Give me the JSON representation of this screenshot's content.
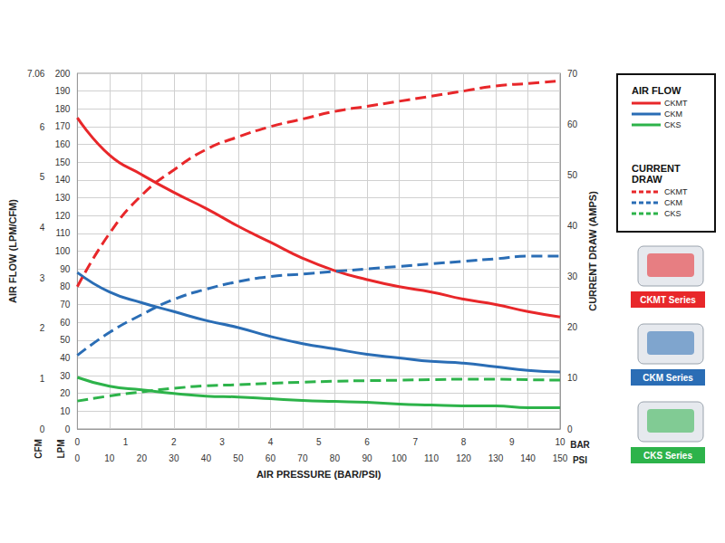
{
  "chart_data": {
    "type": "line",
    "x_label": "AIR PRESSURE (BAR/PSI)",
    "y_label": "AIR FLOW (LPM/CFM)",
    "y2_label": "CURRENT DRAW (AMPS)",
    "x": [
      0,
      10,
      20,
      30,
      40,
      50,
      60,
      70,
      80,
      90,
      100,
      110,
      120,
      130,
      140,
      150
    ],
    "xlim": [
      0,
      150
    ],
    "xticks": [
      0,
      10,
      20,
      30,
      40,
      50,
      60,
      70,
      80,
      90,
      100,
      110,
      120,
      130,
      140,
      150
    ],
    "x_unit": "PSI",
    "x2lim": [
      0,
      10
    ],
    "x2ticks": [
      0,
      1,
      2,
      3,
      4,
      5,
      6,
      7,
      8,
      9,
      10
    ],
    "x2_unit": "BAR",
    "ylim": [
      0,
      200
    ],
    "yticks": [
      0,
      10,
      20,
      30,
      40,
      50,
      60,
      70,
      80,
      90,
      100,
      110,
      120,
      130,
      140,
      150,
      160,
      170,
      180,
      190,
      200
    ],
    "y_unit": "LPM",
    "y3lim": [
      0,
      7.06
    ],
    "y3ticks": [
      0,
      1,
      2,
      3,
      4,
      5,
      6,
      7
    ],
    "y3_unit": "CFM",
    "y2lim": [
      0,
      70
    ],
    "y2ticks": [
      0,
      10,
      20,
      30,
      40,
      50,
      60,
      70
    ],
    "grid": true,
    "legend": "right",
    "series": [
      {
        "name": "CKMT",
        "group": "AIR FLOW",
        "color": "#e8272a",
        "line_style": "solid",
        "values": [
          175,
          154,
          143,
          133,
          124,
          114,
          105,
          96,
          89,
          84,
          80,
          77,
          73,
          70,
          66,
          63
        ]
      },
      {
        "name": "CKM",
        "group": "AIR FLOW",
        "color": "#2a6db5",
        "line_style": "solid",
        "values": [
          88,
          77,
          71,
          66,
          61,
          57,
          52,
          48,
          45,
          42,
          40,
          38,
          37,
          35,
          33,
          32
        ]
      },
      {
        "name": "CKS",
        "group": "AIR FLOW",
        "color": "#2db34a",
        "line_style": "solid",
        "values": [
          29,
          24,
          22,
          20,
          18.5,
          18,
          17,
          16,
          15.5,
          15,
          14,
          13.5,
          13,
          13,
          12,
          12
        ]
      },
      {
        "name": "CKMT",
        "group": "CURRENT DRAW",
        "color": "#e8272a",
        "line_style": "dashed",
        "axis": "y2",
        "values": [
          28,
          38.5,
          46,
          51,
          55,
          57.5,
          59.5,
          61,
          62.5,
          63.5,
          64.5,
          65.5,
          66.5,
          67.5,
          68,
          68.5
        ]
      },
      {
        "name": "CKM",
        "group": "CURRENT DRAW",
        "color": "#2a6db5",
        "line_style": "dashed",
        "axis": "y2",
        "values": [
          14.5,
          19,
          22.5,
          25.5,
          27.5,
          29,
          30,
          30.5,
          31,
          31.5,
          32,
          32.5,
          33,
          33.5,
          34,
          34
        ]
      },
      {
        "name": "CKS",
        "group": "CURRENT DRAW",
        "color": "#2db34a",
        "line_style": "dashed",
        "axis": "y2",
        "values": [
          5.5,
          6.5,
          7.3,
          8,
          8.5,
          8.7,
          9,
          9.2,
          9.4,
          9.5,
          9.6,
          9.7,
          9.8,
          9.8,
          9.7,
          9.6
        ]
      }
    ],
    "annotations": [
      {
        "text": "CKMT Series",
        "color": "#e8272a"
      },
      {
        "text": "CKM Series",
        "color": "#2a6db5"
      },
      {
        "text": "CKS Series",
        "color": "#2db34a"
      }
    ]
  }
}
